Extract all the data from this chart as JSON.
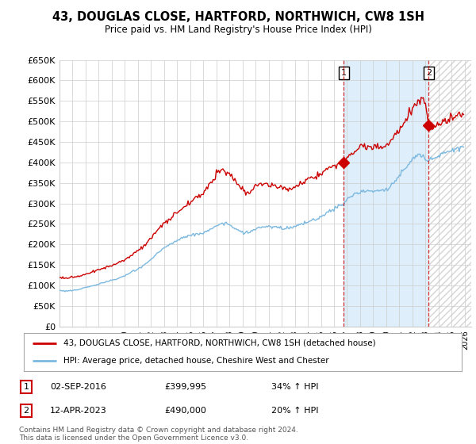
{
  "title": "43, DOUGLAS CLOSE, HARTFORD, NORTHWICH, CW8 1SH",
  "subtitle": "Price paid vs. HM Land Registry's House Price Index (HPI)",
  "ylim": [
    0,
    650000
  ],
  "yticks": [
    0,
    50000,
    100000,
    150000,
    200000,
    250000,
    300000,
    350000,
    400000,
    450000,
    500000,
    550000,
    600000,
    650000
  ],
  "ytick_labels": [
    "£0",
    "£50K",
    "£100K",
    "£150K",
    "£200K",
    "£250K",
    "£300K",
    "£350K",
    "£400K",
    "£450K",
    "£500K",
    "£550K",
    "£600K",
    "£650K"
  ],
  "hpi_color": "#7cb9e0",
  "sale_color": "#cc0000",
  "marker1_price": 399995,
  "marker2_price": 490000,
  "dashed_line1_x": 2016.75,
  "dashed_line2_x": 2023.25,
  "legend_sale": "43, DOUGLAS CLOSE, HARTFORD, NORTHWICH, CW8 1SH (detached house)",
  "legend_hpi": "HPI: Average price, detached house, Cheshire West and Chester",
  "note1_label": "1",
  "note1_date": "02-SEP-2016",
  "note1_price": "£399,995",
  "note1_hpi": "34% ↑ HPI",
  "note2_label": "2",
  "note2_date": "12-APR-2023",
  "note2_price": "£490,000",
  "note2_hpi": "20% ↑ HPI",
  "footer": "Contains HM Land Registry data © Crown copyright and database right 2024.\nThis data is licensed under the Open Government Licence v3.0.",
  "background_color": "#ffffff",
  "grid_color": "#cccccc",
  "xlim_start": 1995,
  "xlim_end": 2026.5
}
